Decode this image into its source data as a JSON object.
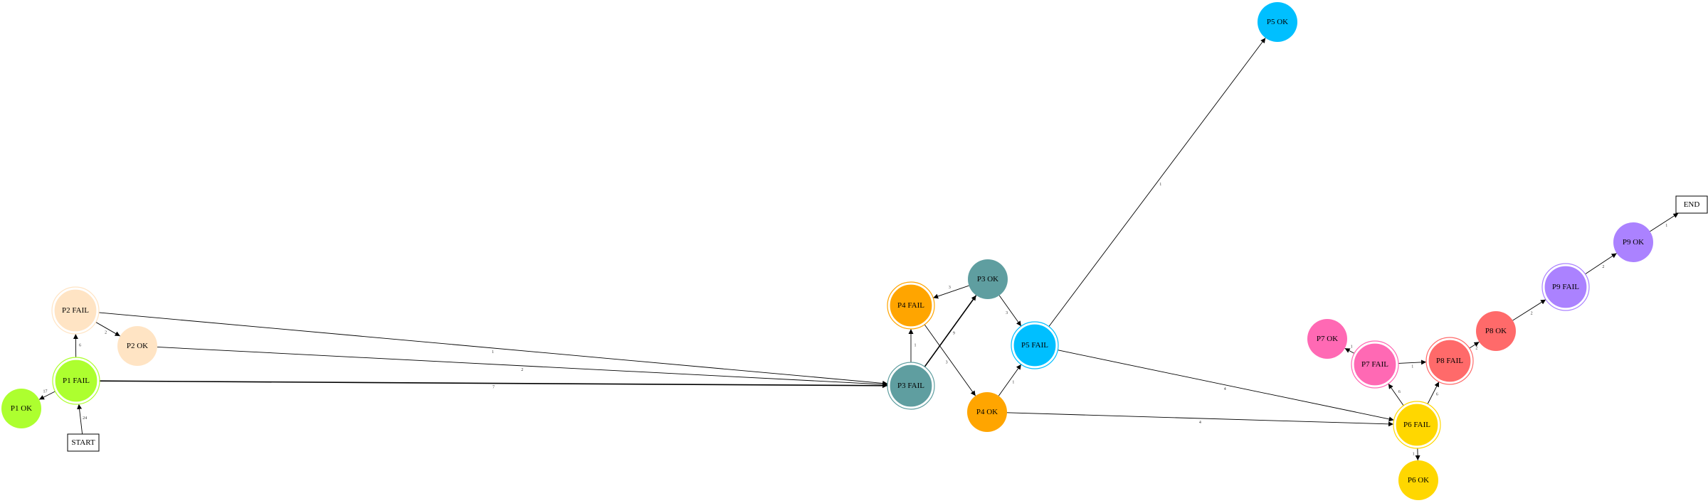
{
  "nodes": [
    {
      "id": "p1fail",
      "label": "P1 FAIL",
      "color": "#ADFF2F",
      "double": true
    },
    {
      "id": "p1ok",
      "label": "P1 OK",
      "color": "#ADFF2F",
      "double": false
    },
    {
      "id": "p2fail",
      "label": "P2 FAIL",
      "color": "#FFE4C4",
      "double": true
    },
    {
      "id": "p2ok",
      "label": "P2 OK",
      "color": "#FFE4C4",
      "double": false
    },
    {
      "id": "p3fail",
      "label": "P3 FAIL",
      "color": "#5F9EA0",
      "double": true
    },
    {
      "id": "p3ok",
      "label": "P3 OK",
      "color": "#5F9EA0",
      "double": false
    },
    {
      "id": "p4fail",
      "label": "P4 FAIL",
      "color": "#FFA500",
      "double": true
    },
    {
      "id": "p4ok",
      "label": "P4 OK",
      "color": "#FFA500",
      "double": false
    },
    {
      "id": "p5fail",
      "label": "P5 FAIL",
      "color": "#00BFFF",
      "double": true
    },
    {
      "id": "p5ok",
      "label": "P5 OK",
      "color": "#00BFFF",
      "double": false
    },
    {
      "id": "p6fail",
      "label": "P6 FAIL",
      "color": "#FFD700",
      "double": true
    },
    {
      "id": "p6ok",
      "label": "P6 OK",
      "color": "#FFD700",
      "double": false
    },
    {
      "id": "p7fail",
      "label": "P7 FAIL",
      "color": "#FF69B4",
      "double": true
    },
    {
      "id": "p7ok",
      "label": "P7 OK",
      "color": "#FF69B4",
      "double": false
    },
    {
      "id": "p8fail",
      "label": "P8 FAIL",
      "color": "#FF6A6A",
      "double": true
    },
    {
      "id": "p8ok",
      "label": "P8 OK",
      "color": "#FF6A6A",
      "double": false
    },
    {
      "id": "p9fail",
      "label": "P9 FAIL",
      "color": "#AB82FF",
      "double": true
    },
    {
      "id": "p9ok",
      "label": "P9 OK",
      "color": "#AB82FF",
      "double": false
    }
  ],
  "boxes": [
    {
      "id": "start",
      "label": "START"
    },
    {
      "id": "end",
      "label": "END"
    }
  ],
  "edges": [
    {
      "from": "start",
      "to": "p1fail",
      "label": "24"
    },
    {
      "from": "p1fail",
      "to": "p1ok",
      "label": "17"
    },
    {
      "from": "p1fail",
      "to": "p2fail",
      "label": "6"
    },
    {
      "from": "p1fail",
      "to": "p3fail",
      "label": "7"
    },
    {
      "from": "p2fail",
      "to": "p2ok",
      "label": "2"
    },
    {
      "from": "p2fail",
      "to": "p3fail",
      "label": "1"
    },
    {
      "from": "p2ok",
      "to": "p3fail",
      "label": "2"
    },
    {
      "from": "p3fail",
      "to": "p3ok",
      "label": "9"
    },
    {
      "from": "p3fail",
      "to": "p4fail",
      "label": "1"
    },
    {
      "from": "p3ok",
      "to": "p4fail",
      "label": "3"
    },
    {
      "from": "p3ok",
      "to": "p5fail",
      "label": "3"
    },
    {
      "from": "p4fail",
      "to": "p4ok",
      "label": "3"
    },
    {
      "from": "p4ok",
      "to": "p5fail",
      "label": "1"
    },
    {
      "from": "p4ok",
      "to": "p6fail",
      "label": "4"
    },
    {
      "from": "p5fail",
      "to": "p5ok",
      "label": "1"
    },
    {
      "from": "p5fail",
      "to": "p6fail",
      "label": "4"
    },
    {
      "from": "p6fail",
      "to": "p6ok",
      "label": "1"
    },
    {
      "from": "p6fail",
      "to": "p7fail",
      "label": "6"
    },
    {
      "from": "p6fail",
      "to": "p8fail",
      "label": "6"
    },
    {
      "from": "p7fail",
      "to": "p7ok",
      "label": "1"
    },
    {
      "from": "p7fail",
      "to": "p8fail",
      "label": "1"
    },
    {
      "from": "p8fail",
      "to": "p8ok",
      "label": "2"
    },
    {
      "from": "p8ok",
      "to": "p9fail",
      "label": "2"
    },
    {
      "from": "p9fail",
      "to": "p9ok",
      "label": "2"
    },
    {
      "from": "p9ok",
      "to": "end",
      "label": "1"
    }
  ]
}
